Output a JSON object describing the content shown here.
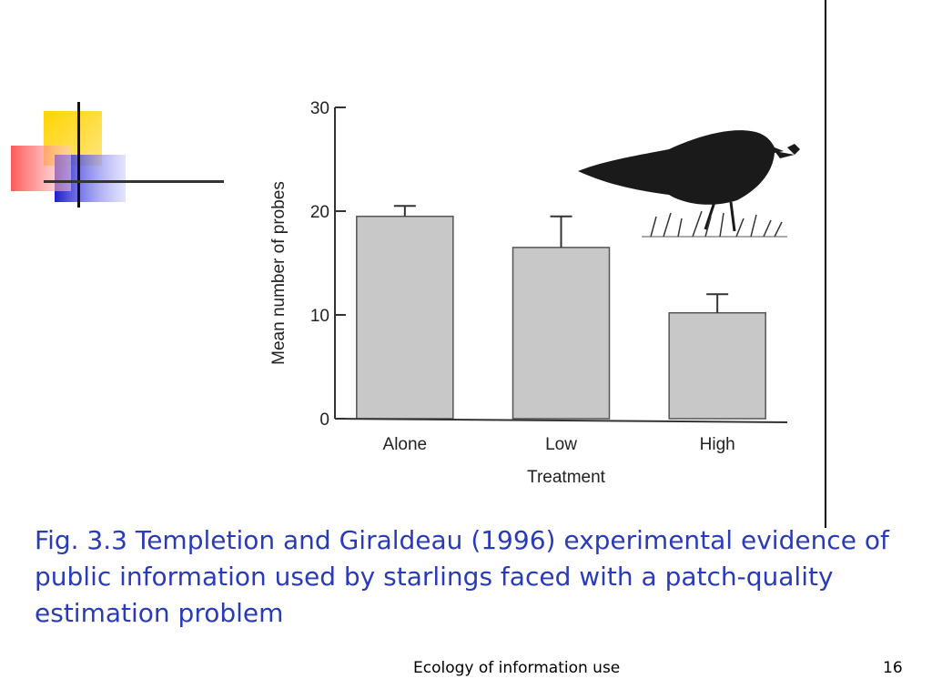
{
  "slide": {
    "caption": "Fig. 3.3 Templetion and Giraldeau (1996) experimental evidence of public information used by starlings faced with a patch-quality estimation problem",
    "footer_title": "Ecology of information use",
    "page_number": "16",
    "colors": {
      "caption": "#2a3bb8",
      "deco_yellow": "#ffd400",
      "deco_red": "#ff4a4a",
      "deco_blue": "#2a2ad8",
      "bar_fill": "#c8c8c8"
    }
  },
  "chart_data": {
    "type": "bar",
    "categories": [
      "Alone",
      "Low",
      "High"
    ],
    "values": [
      19.5,
      16.5,
      10.2
    ],
    "error_upper": [
      20.5,
      19.5,
      12.0
    ],
    "xlabel": "Treatment",
    "ylabel": "Mean number of probes",
    "ylim": [
      0,
      30
    ],
    "yticks": [
      "0",
      "10",
      "20",
      "30"
    ],
    "grid": false,
    "legend": "none",
    "illustration": "starling-icon"
  }
}
